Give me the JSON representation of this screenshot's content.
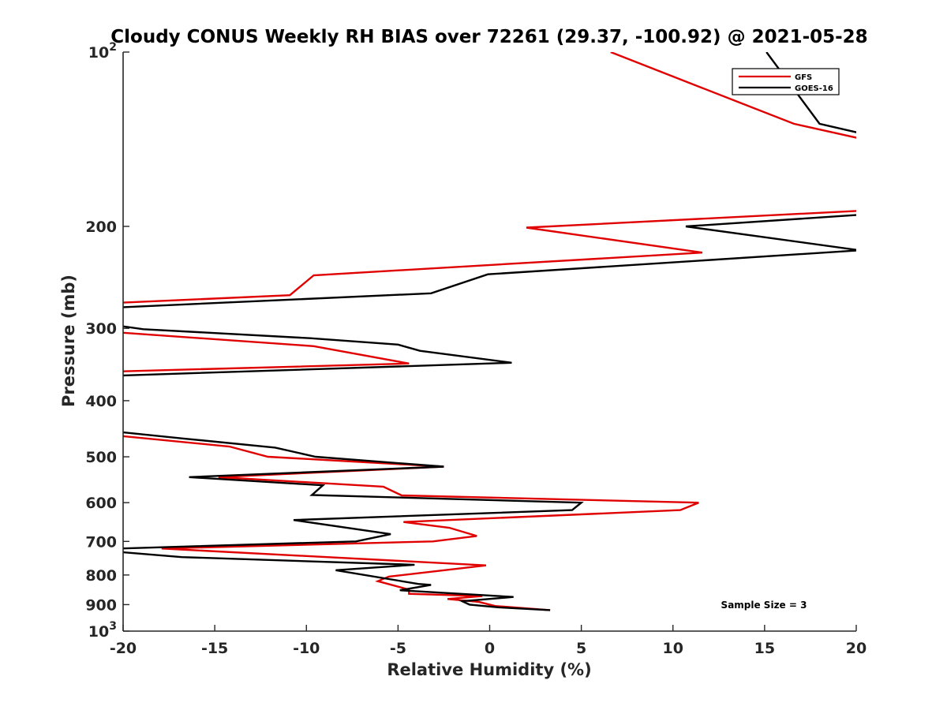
{
  "chart_data": {
    "type": "line",
    "title": "Cloudy CONUS Weekly RH BIAS over 72261 (29.37, -100.92) @ 2021-05-28",
    "xlabel": "Relative Humidity (%)",
    "ylabel": "Pressure (mb)",
    "xlim": [
      -20,
      20
    ],
    "ylim": [
      100,
      1000
    ],
    "y_scale": "log",
    "y_reversed": true,
    "x_ticks": [
      -20,
      -15,
      -10,
      -5,
      0,
      5,
      10,
      15,
      20
    ],
    "y_ticks": [
      {
        "value": 100,
        "label": "10",
        "sup": "2"
      },
      {
        "value": 200,
        "label": "200",
        "sup": ""
      },
      {
        "value": 300,
        "label": "300",
        "sup": ""
      },
      {
        "value": 400,
        "label": "400",
        "sup": ""
      },
      {
        "value": 500,
        "label": "500",
        "sup": ""
      },
      {
        "value": 600,
        "label": "600",
        "sup": ""
      },
      {
        "value": 700,
        "label": "700",
        "sup": ""
      },
      {
        "value": 800,
        "label": "800",
        "sup": ""
      },
      {
        "value": 900,
        "label": "900",
        "sup": ""
      },
      {
        "value": 1000,
        "label": "10",
        "sup": "3"
      }
    ],
    "legend_position": "top-right",
    "grid": false,
    "annotation": "Sample Size = 3",
    "series": [
      {
        "name": "GFS",
        "color": "#e00000",
        "points": [
          [
            6.6,
            100
          ],
          [
            11.5,
            115
          ],
          [
            16.6,
            133
          ],
          [
            20.2,
            141
          ],
          [
            20.2,
            188
          ],
          [
            2.0,
            201
          ],
          [
            11.6,
            222
          ],
          [
            -9.6,
            243
          ],
          [
            -10.9,
            263
          ],
          [
            -20.2,
            271
          ],
          [
            -20.2,
            305
          ],
          [
            -9.6,
            322
          ],
          [
            -4.4,
            345
          ],
          [
            -20.2,
            356
          ],
          [
            -20.2,
            460
          ],
          [
            -14.2,
            480
          ],
          [
            -12.1,
            500
          ],
          [
            -2.5,
            520
          ],
          [
            -14.8,
            542
          ],
          [
            -5.8,
            563
          ],
          [
            -4.8,
            583
          ],
          [
            11.4,
            600
          ],
          [
            10.4,
            618
          ],
          [
            -4.7,
            648
          ],
          [
            -2.2,
            663
          ],
          [
            -0.7,
            685
          ],
          [
            -3.1,
            700
          ],
          [
            -17.9,
            720
          ],
          [
            -0.2,
            770
          ],
          [
            -5.5,
            805
          ],
          [
            -6.1,
            820
          ],
          [
            -4.4,
            848
          ],
          [
            -4.4,
            862
          ],
          [
            -0.4,
            870
          ],
          [
            -2.3,
            880
          ],
          [
            -0.6,
            890
          ],
          [
            0.3,
            905
          ],
          [
            3.3,
            920
          ]
        ]
      },
      {
        "name": "GOES-16",
        "color": "#000000",
        "points": [
          [
            15.1,
            100
          ],
          [
            18.0,
            133
          ],
          [
            20.2,
            138
          ],
          [
            20.2,
            191
          ],
          [
            10.7,
            200
          ],
          [
            20.2,
            220
          ],
          [
            -0.1,
            242
          ],
          [
            -3.2,
            261
          ],
          [
            -20.2,
            276
          ],
          [
            -20.2,
            297
          ],
          [
            -18.9,
            301
          ],
          [
            -9.8,
            312
          ],
          [
            -5.0,
            320
          ],
          [
            -3.8,
            328
          ],
          [
            1.2,
            344
          ],
          [
            -20.2,
            362
          ],
          [
            -20.2,
            453
          ],
          [
            -16.7,
            465
          ],
          [
            -11.7,
            482
          ],
          [
            -9.5,
            500
          ],
          [
            -2.5,
            520
          ],
          [
            -16.4,
            542
          ],
          [
            -9.1,
            560
          ],
          [
            -9.7,
            582
          ],
          [
            5.0,
            600
          ],
          [
            4.5,
            618
          ],
          [
            -10.7,
            643
          ],
          [
            -5.4,
            680
          ],
          [
            -7.3,
            700
          ],
          [
            -20.2,
            720
          ],
          [
            -20.2,
            730
          ],
          [
            -16.8,
            745
          ],
          [
            -4.1,
            768
          ],
          [
            -8.4,
            785
          ],
          [
            -3.9,
            829
          ],
          [
            -3.2,
            832
          ],
          [
            -4.9,
            850
          ],
          [
            1.3,
            873
          ],
          [
            -1.5,
            888
          ],
          [
            -1.1,
            900
          ],
          [
            0.5,
            910
          ],
          [
            3.3,
            920
          ]
        ]
      }
    ]
  }
}
